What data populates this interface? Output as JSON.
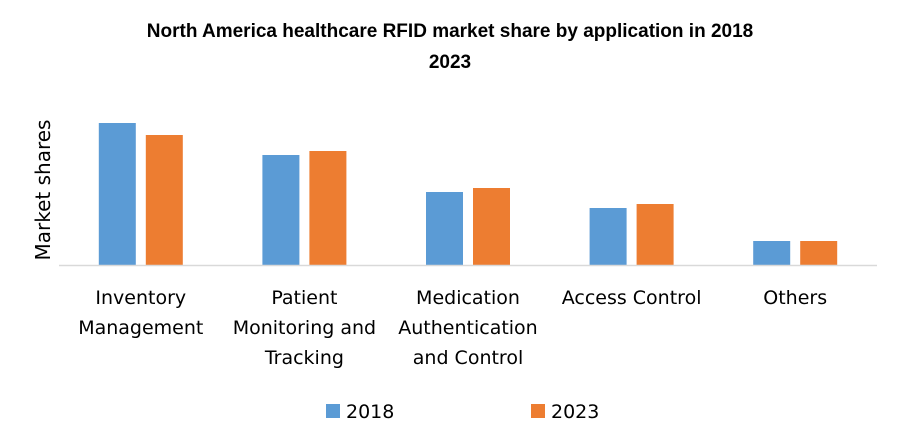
{
  "chart_data": {
    "type": "bar",
    "title_lines": [
      "North America healthcare RFID market share by application in 2018",
      "2023"
    ],
    "xlabel": "",
    "ylabel": "Market shares",
    "categories": [
      [
        "Inventory",
        "Management"
      ],
      [
        "Patient",
        "Monitoring and",
        "Tracking"
      ],
      [
        "Medication",
        "Authentication",
        "and Control"
      ],
      [
        "Access Control"
      ],
      [
        "Others"
      ]
    ],
    "series": [
      {
        "name": "2018",
        "color": "#5b9bd5",
        "values": [
          142,
          110,
          73,
          57,
          24
        ]
      },
      {
        "name": "2023",
        "color": "#ed7d31",
        "values": [
          130,
          114,
          77,
          61,
          24
        ]
      }
    ],
    "ylim": [
      0,
      150
    ],
    "grid": false,
    "legend": "bottom",
    "axis_color": "#d9d9d9"
  }
}
